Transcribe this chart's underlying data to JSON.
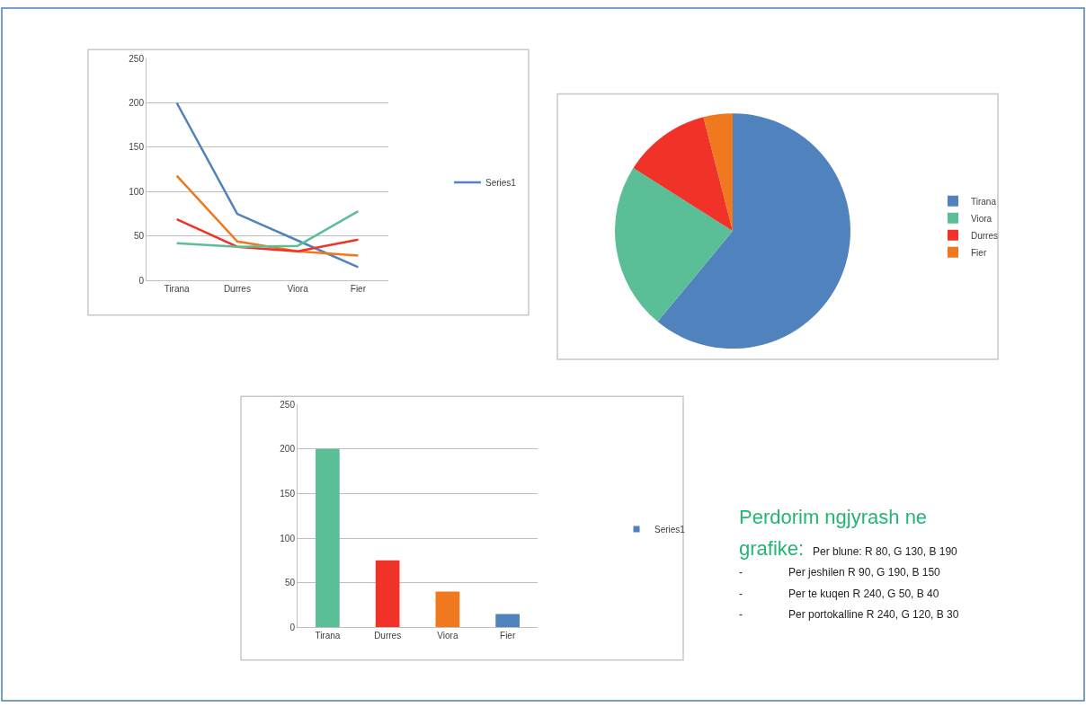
{
  "chart_data": [
    {
      "type": "line",
      "categories": [
        "Tirana",
        "Durres",
        "Viora",
        "Fier"
      ],
      "ylim": [
        0,
        250
      ],
      "yticks": [
        0,
        50,
        100,
        150,
        200,
        250
      ],
      "grid": "y",
      "legend": "right",
      "series": [
        {
          "name": "Series1",
          "color": "#5082be",
          "values": [
            200,
            75,
            45,
            15
          ]
        },
        {
          "color": "#f0781e",
          "values": [
            118,
            44,
            33,
            28
          ]
        },
        {
          "color": "#f03228",
          "values": [
            69,
            38,
            33,
            46
          ]
        },
        {
          "color": "#5abe96",
          "values": [
            42,
            38,
            39,
            78
          ]
        }
      ]
    },
    {
      "type": "pie",
      "categories": [
        "Tirana",
        "Viora",
        "Durres",
        "Fier"
      ],
      "values": [
        61,
        23,
        12,
        4
      ],
      "colors": [
        "#5082be",
        "#5abe96",
        "#f03228",
        "#f0781e"
      ],
      "legend": "right"
    },
    {
      "type": "bar",
      "categories": [
        "Tirana",
        "Durres",
        "Viora",
        "Fier"
      ],
      "ylim": [
        0,
        250
      ],
      "yticks": [
        0,
        50,
        100,
        150,
        200,
        250
      ],
      "grid": "y",
      "legend": "right",
      "series": [
        {
          "name": "Series1",
          "color": "#5082be",
          "colors": [
            "#5abe96",
            "#f03228",
            "#f0781e",
            "#5082be"
          ],
          "values": [
            200,
            75,
            40,
            15
          ]
        }
      ]
    },
    {
      "type": "other",
      "title": "Perdorim  ngjyrash ne grafike:",
      "annotations": [
        "Per blune: R 80, G 130, B 190",
        "- Per jeshilen R 90, G 190, B 150",
        "- Per te kuqen R 240, G 50, B 40",
        "- Per portokalline R 240, G 120, B 30"
      ]
    }
  ]
}
